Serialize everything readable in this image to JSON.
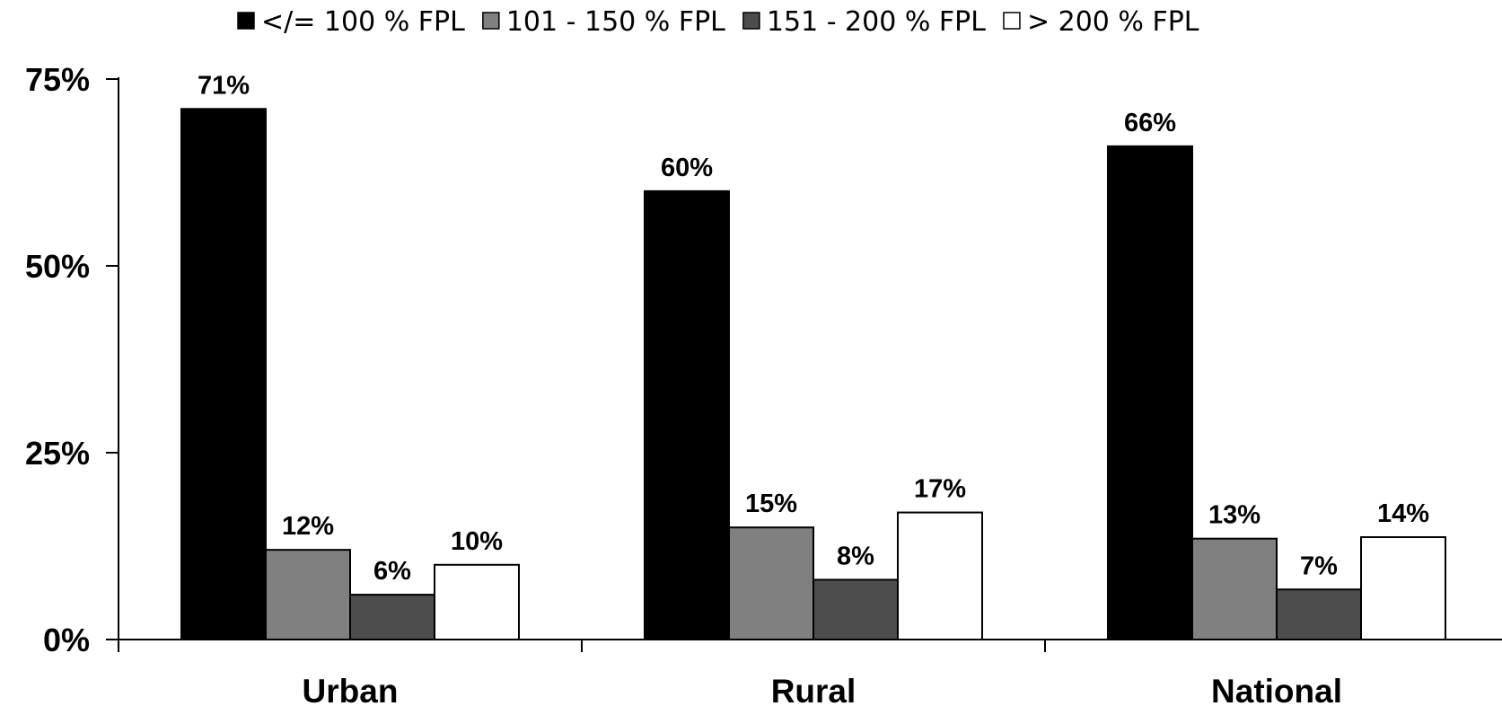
{
  "chart_data": {
    "type": "bar",
    "title": "",
    "xlabel": "",
    "ylabel": "",
    "ylim": [
      0,
      75
    ],
    "yticks": [
      0,
      25,
      50,
      75
    ],
    "ytick_labels": [
      "0%",
      "25%",
      "50%",
      "75%"
    ],
    "grid": false,
    "legend_position": "top",
    "categories": [
      "Urban",
      "Rural",
      "National"
    ],
    "series": [
      {
        "name": "</= 100 % FPL",
        "color": "#000000",
        "values": [
          71,
          60,
          66
        ],
        "labels": [
          "71%",
          "60%",
          "66%"
        ]
      },
      {
        "name": "101 - 150 % FPL",
        "color": "#808080",
        "values": [
          12,
          15,
          13.5
        ],
        "labels": [
          "12%",
          "15%",
          "13%"
        ]
      },
      {
        "name": "151 - 200 % FPL",
        "color": "#4d4d4d",
        "values": [
          6,
          8,
          6.7
        ],
        "labels": [
          "6%",
          "8%",
          "7%"
        ]
      },
      {
        "name": "> 200 % FPL",
        "color": "#ffffff",
        "values": [
          10,
          17,
          13.7
        ],
        "labels": [
          "10%",
          "17%",
          "14%"
        ]
      }
    ]
  }
}
